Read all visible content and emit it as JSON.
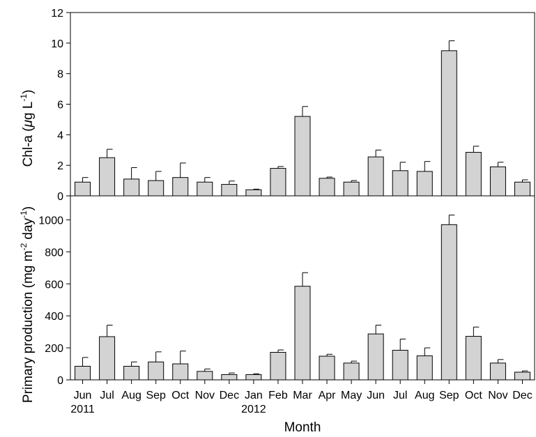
{
  "chart_data": [
    {
      "type": "bar",
      "ylabel": "Chl-a (μg L⁻¹)",
      "ylabel_parts": {
        "main": "Chl-a (",
        "mu": "μ",
        "g": "g L",
        "sup": "-1",
        "close": ")"
      },
      "ylim": [
        0,
        12
      ],
      "yticks": [
        0,
        2,
        4,
        6,
        8,
        10,
        12
      ],
      "values": [
        0.9,
        2.5,
        1.1,
        1.0,
        1.2,
        0.9,
        0.75,
        0.4,
        1.8,
        5.2,
        1.15,
        0.9,
        2.55,
        1.65,
        1.6,
        9.5,
        2.85,
        1.9,
        0.9
      ],
      "errors": [
        0.3,
        0.55,
        0.75,
        0.6,
        0.95,
        0.3,
        0.22,
        0.04,
        0.12,
        0.65,
        0.08,
        0.1,
        0.45,
        0.55,
        0.65,
        0.65,
        0.4,
        0.3,
        0.15
      ],
      "bar_color": "#d3d3d3"
    },
    {
      "type": "bar",
      "ylabel": "Primary production (mg m⁻² day⁻¹)",
      "ylabel_parts": {
        "a": "Primary production (mg m",
        "sup1": "-2",
        "b": " day",
        "sup2": "-1",
        "c": ")"
      },
      "ylim": [
        0,
        1150
      ],
      "yticks": [
        0,
        200,
        400,
        600,
        800,
        1000
      ],
      "values": [
        85,
        270,
        85,
        112,
        100,
        53,
        33,
        33,
        172,
        585,
        148,
        105,
        287,
        185,
        150,
        970,
        272,
        105,
        48
      ],
      "errors": [
        55,
        72,
        27,
        63,
        80,
        15,
        10,
        5,
        15,
        85,
        12,
        12,
        55,
        70,
        50,
        60,
        58,
        22,
        8
      ],
      "bar_color": "#d3d3d3"
    }
  ],
  "categories": [
    "Jun",
    "Jul",
    "Aug",
    "Sep",
    "Oct",
    "Nov",
    "Dec",
    "Jan",
    "Feb",
    "Mar",
    "Apr",
    "May",
    "Jun",
    "Jul",
    "Aug",
    "Sep",
    "Oct",
    "Nov",
    "Dec"
  ],
  "year_labels": [
    {
      "index": 0,
      "text": "2011"
    },
    {
      "index": 7,
      "text": "2012"
    }
  ],
  "xlabel": "Month"
}
